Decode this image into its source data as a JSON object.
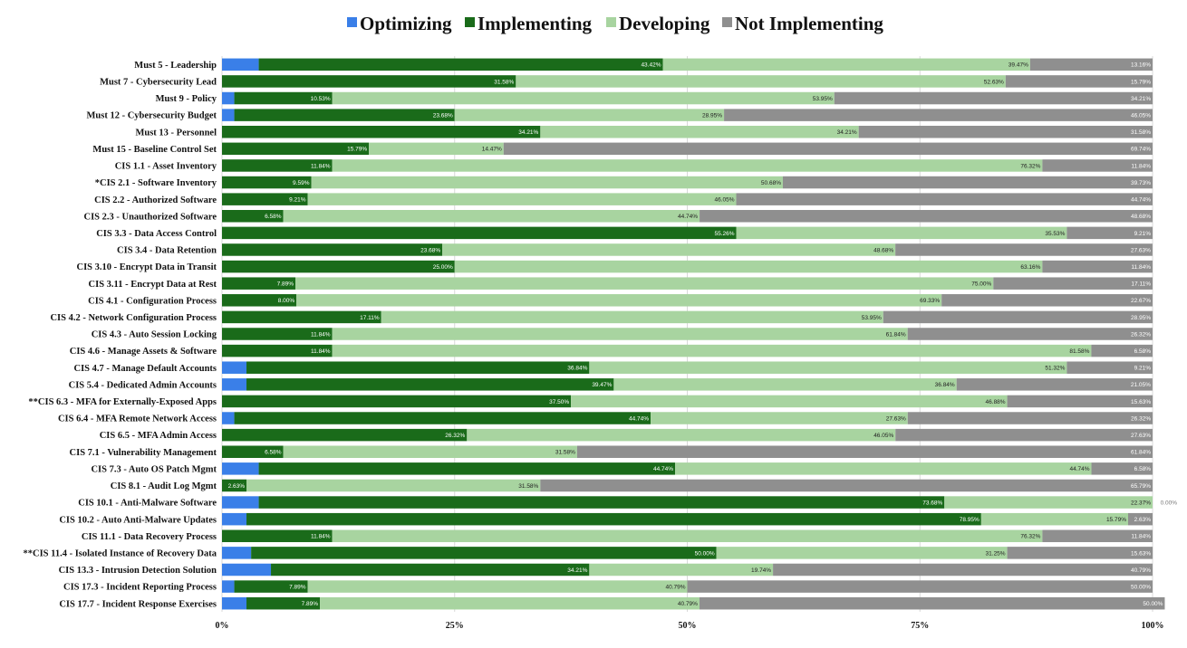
{
  "chart_data": {
    "type": "bar",
    "orientation": "horizontal",
    "stacked": true,
    "percent_stacked": true,
    "legend_position": "top",
    "grid": true,
    "xlim": [
      0,
      100
    ],
    "x_ticks": [
      "0%",
      "25%",
      "50%",
      "75%",
      "100%"
    ],
    "colors": {
      "Optimizing": "#3a7fe8",
      "Implementing": "#1a6b1a",
      "Developing": "#a8d4a0",
      "Not Implementing": "#8f8f8f"
    },
    "categories": [
      "Must 5 - Leadership",
      "Must 7 - Cybersecurity Lead",
      "Must 9 - Policy",
      "Must 12 - Cybersecurity Budget",
      "Must 13 - Personnel",
      "Must 15 - Baseline Control Set",
      "CIS 1.1 - Asset Inventory",
      "*CIS 2.1 - Software Inventory",
      "CIS 2.2 - Authorized Software",
      "CIS 2.3 - Unauthorized Software",
      "CIS 3.3 - Data Access Control",
      "CIS 3.4 - Data Retention",
      "CIS 3.10 - Encrypt Data in Transit",
      "CIS 3.11 - Encrypt Data at Rest",
      "CIS 4.1 - Configuration Process",
      "CIS 4.2 - Network Configuration Process",
      "CIS 4.3 - Auto Session Locking",
      "CIS 4.6 - Manage Assets & Software",
      "CIS 4.7 - Manage Default Accounts",
      "CIS 5.4 - Dedicated Admin Accounts",
      "**CIS 6.3 - MFA for Externally-Exposed Apps",
      "CIS 6.4 - MFA Remote Network Access",
      "CIS 6.5 - MFA Admin Access",
      "CIS 7.1 - Vulnerability Management",
      "CIS 7.3 - Auto OS Patch Mgmt",
      "CIS 8.1 - Audit Log Mgmt",
      "CIS 10.1 - Anti-Malware Software",
      "CIS 10.2 - Auto Anti-Malware Updates",
      "CIS 11.1 - Data Recovery Process",
      "**CIS 11.4 - Isolated Instance of Recovery Data",
      "CIS 13.3 - Intrusion Detection Solution",
      "CIS 17.3 - Incident Reporting Process",
      "CIS 17.7 - Incident Response Exercises"
    ],
    "series": [
      {
        "name": "Optimizing",
        "values": [
          3.95,
          0,
          1.32,
          1.32,
          0,
          0,
          0,
          0,
          0,
          0,
          0,
          0,
          0,
          0,
          0,
          0,
          0,
          0,
          2.63,
          2.63,
          0,
          1.32,
          0,
          0,
          3.95,
          0,
          3.95,
          2.63,
          0,
          3.13,
          5.26,
          1.32,
          2.63
        ],
        "labels": [
          "",
          "",
          "",
          "",
          "",
          "",
          "",
          "",
          "",
          "",
          "",
          "",
          "",
          "",
          "",
          "",
          "",
          "",
          "",
          "",
          "",
          "",
          "",
          "",
          "",
          "",
          "",
          "",
          "",
          "",
          "",
          "",
          ""
        ]
      },
      {
        "name": "Implementing",
        "values": [
          43.42,
          31.58,
          10.53,
          23.68,
          34.21,
          15.79,
          11.84,
          9.59,
          9.21,
          6.58,
          55.26,
          23.68,
          25.0,
          7.89,
          8.0,
          17.11,
          11.84,
          11.84,
          36.84,
          39.47,
          37.5,
          44.74,
          26.32,
          6.58,
          44.74,
          2.63,
          73.68,
          78.95,
          11.84,
          50.0,
          34.21,
          7.89,
          7.89
        ],
        "labels": [
          "43.42%",
          "31.58%",
          "10.53%",
          "23.68%",
          "34.21%",
          "15.79%",
          "11.84%",
          "9.59%",
          "9.21%",
          "6.58%",
          "55.26%",
          "23.68%",
          "25.00%",
          "7.89%",
          "8.00%",
          "17.11%",
          "11.84%",
          "11.84%",
          "36.84%",
          "39.47%",
          "37.50%",
          "44.74%",
          "26.32%",
          "6.58%",
          "44.74%",
          "2.63%",
          "73.68%",
          "78.95%",
          "11.84%",
          "50.00%",
          "34.21%",
          "7.89%",
          "7.89%"
        ]
      },
      {
        "name": "Developing",
        "values": [
          39.47,
          52.63,
          53.95,
          28.95,
          34.21,
          14.47,
          76.32,
          50.68,
          46.05,
          44.74,
          35.53,
          48.68,
          63.16,
          75.0,
          69.33,
          53.95,
          61.84,
          81.58,
          51.32,
          36.84,
          46.88,
          27.63,
          46.05,
          31.58,
          44.74,
          31.58,
          22.37,
          15.79,
          76.32,
          31.25,
          19.74,
          40.79,
          40.79
        ],
        "labels": [
          "39.47%",
          "52.63%",
          "53.95%",
          "28.95%",
          "34.21%",
          "14.47%",
          "76.32%",
          "50.68%",
          "46.05%",
          "44.74%",
          "35.53%",
          "48.68%",
          "63.16%",
          "75.00%",
          "69.33%",
          "53.95%",
          "61.84%",
          "81.58%",
          "51.32%",
          "36.84%",
          "46.88%",
          "27.63%",
          "46.05%",
          "31.58%",
          "44.74%",
          "31.58%",
          "22.37%",
          "15.79%",
          "76.32%",
          "31.25%",
          "19.74%",
          "40.79%",
          "40.79%"
        ]
      },
      {
        "name": "Not Implementing",
        "values": [
          13.16,
          15.79,
          34.21,
          46.05,
          31.58,
          69.74,
          11.84,
          39.73,
          44.74,
          48.68,
          9.21,
          27.63,
          11.84,
          17.11,
          22.67,
          28.95,
          26.32,
          6.58,
          9.21,
          21.05,
          15.63,
          26.32,
          27.63,
          61.84,
          6.58,
          65.79,
          0.0,
          2.63,
          11.84,
          15.63,
          40.79,
          50.0,
          50.0
        ],
        "labels": [
          "13.16%",
          "15.79%",
          "34.21%",
          "46.05%",
          "31.58%",
          "69.74%",
          "11.84%",
          "39.73%",
          "44.74%",
          "48.68%",
          "9.21%",
          "27.63%",
          "11.84%",
          "17.11%",
          "22.67%",
          "28.95%",
          "26.32%",
          "6.58%",
          "9.21%",
          "21.05%",
          "15.63%",
          "26.32%",
          "27.63%",
          "61.84%",
          "6.58%",
          "65.79%",
          "0.00%",
          "2.63%",
          "11.84%",
          "15.63%",
          "40.79%",
          "50.00%",
          "50.00%"
        ]
      }
    ]
  }
}
